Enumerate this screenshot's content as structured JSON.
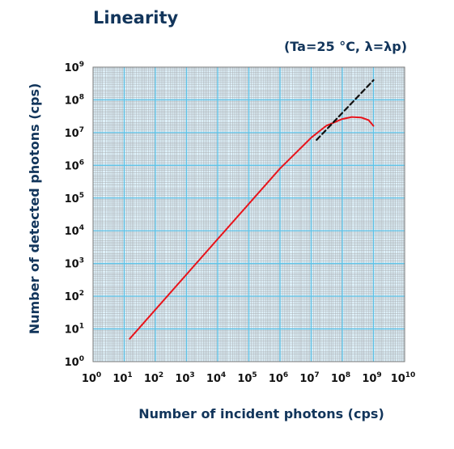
{
  "chart_data": {
    "type": "line",
    "title": "Linearity",
    "condition": "(Ta=25 °C, λ=λp)",
    "xlabel": "Number of incident photons (cps)",
    "ylabel": "Number of detected photons (cps)",
    "x_scale": "log",
    "y_scale": "log",
    "xlim": [
      1,
      10000000000
    ],
    "ylim": [
      1,
      1000000000
    ],
    "x_ticks": [
      {
        "base": "10",
        "exp": "0"
      },
      {
        "base": "10",
        "exp": "1"
      },
      {
        "base": "10",
        "exp": "2"
      },
      {
        "base": "10",
        "exp": "3"
      },
      {
        "base": "10",
        "exp": "4"
      },
      {
        "base": "10",
        "exp": "5"
      },
      {
        "base": "10",
        "exp": "6"
      },
      {
        "base": "10",
        "exp": "7"
      },
      {
        "base": "10",
        "exp": "8"
      },
      {
        "base": "10",
        "exp": "9"
      },
      {
        "base": "10",
        "exp": "10"
      }
    ],
    "y_ticks": [
      {
        "base": "10",
        "exp": "0"
      },
      {
        "base": "10",
        "exp": "1"
      },
      {
        "base": "10",
        "exp": "2"
      },
      {
        "base": "10",
        "exp": "3"
      },
      {
        "base": "10",
        "exp": "4"
      },
      {
        "base": "10",
        "exp": "5"
      },
      {
        "base": "10",
        "exp": "6"
      },
      {
        "base": "10",
        "exp": "7"
      },
      {
        "base": "10",
        "exp": "8"
      },
      {
        "base": "10",
        "exp": "9"
      }
    ],
    "grid": true,
    "series": [
      {
        "style": "solid",
        "color": "#e8141b",
        "points": [
          [
            15,
            5
          ],
          [
            1000000,
            800000
          ],
          [
            10000000,
            7000000
          ],
          [
            30000000,
            16000000
          ],
          [
            100000000,
            26000000
          ],
          [
            200000000,
            30000000
          ],
          [
            400000000,
            29000000
          ],
          [
            700000000,
            24000000
          ],
          [
            1000000000,
            16000000
          ]
        ]
      },
      {
        "style": "dashed",
        "color": "#111111",
        "points": [
          [
            15000000,
            6000000
          ],
          [
            1000000000,
            400000000
          ]
        ]
      }
    ]
  },
  "colors": {
    "plot_background": "#def1fa",
    "grid_major": "#5cc1e6",
    "grid_minor": "#a6a8ab",
    "text": "#12355b"
  }
}
